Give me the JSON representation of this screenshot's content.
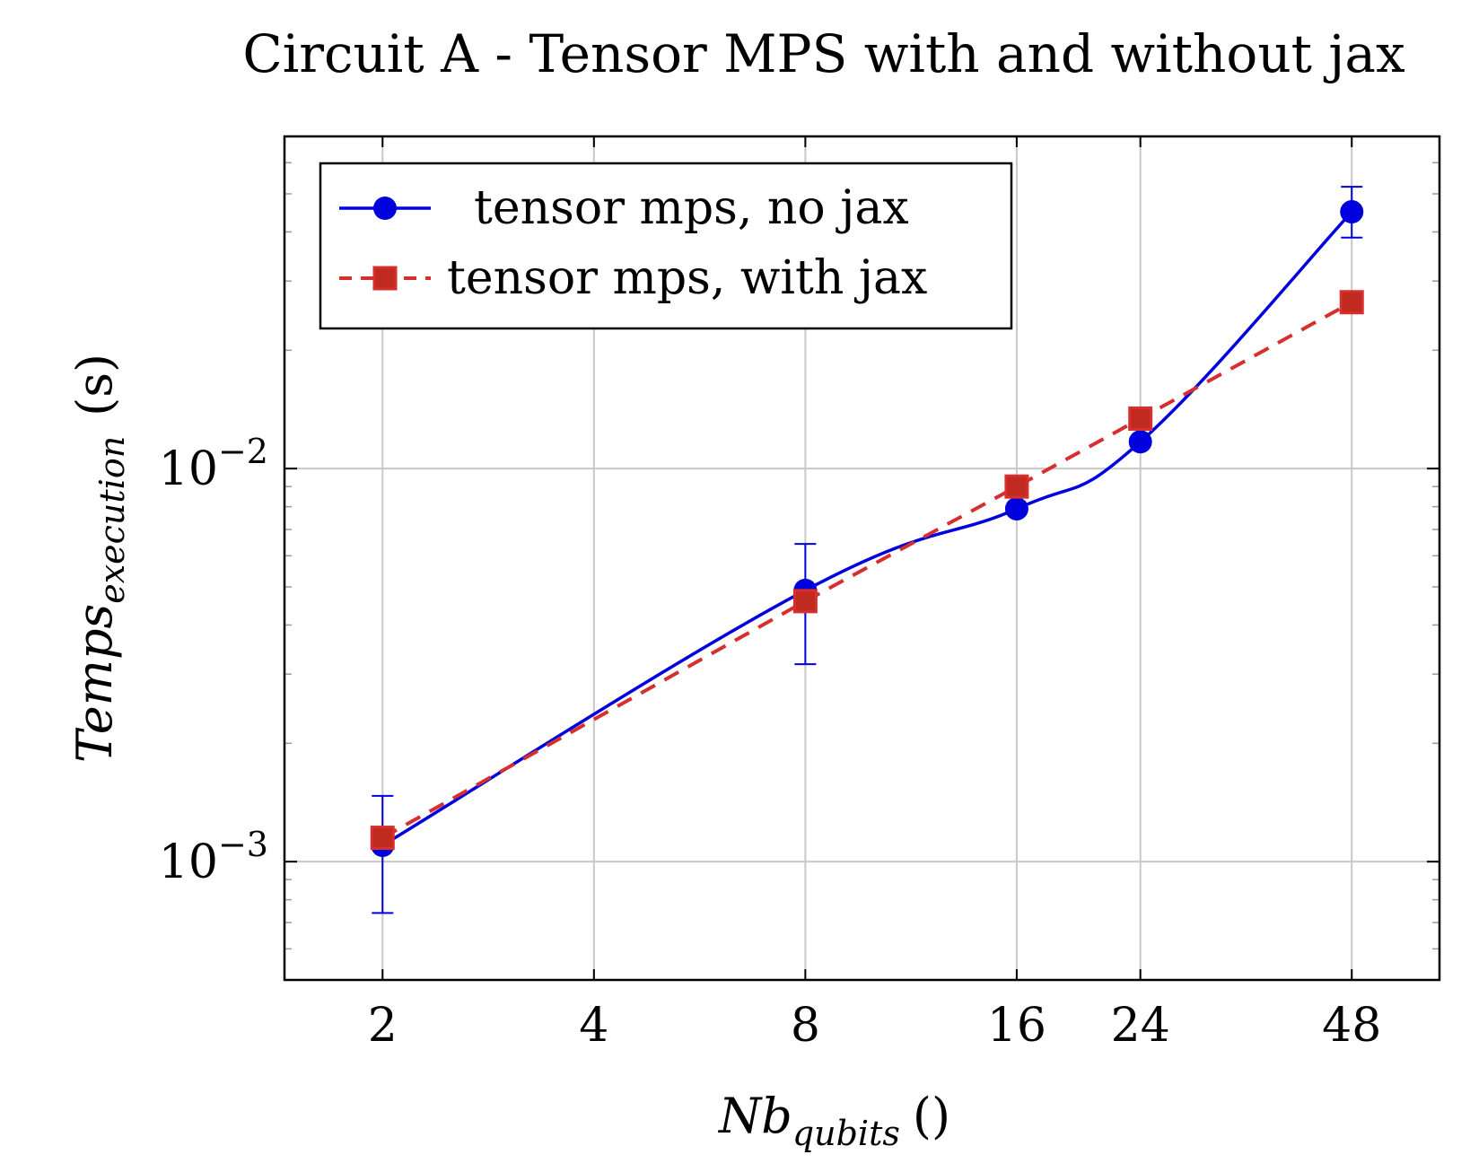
{
  "chart_data": {
    "type": "line",
    "title": "Circuit A - Tensor MPS with and without jax",
    "xlabel": {
      "main": "Nb",
      "sub": "qubits",
      "unit": "()"
    },
    "ylabel": {
      "main": "Temps",
      "sub": "execution",
      "unit": "(s)"
    },
    "x_scale": "log2",
    "y_scale": "log10",
    "x_ticks": [
      2,
      4,
      8,
      16,
      24,
      48
    ],
    "x_tick_labels": [
      "2",
      "4",
      "8",
      "16",
      "24",
      "48"
    ],
    "y_ticks": [
      0.001,
      0.01
    ],
    "y_tick_labels": [
      {
        "base": "10",
        "exp": "−3"
      },
      {
        "base": "10",
        "exp": "−2"
      }
    ],
    "xlim": [
      1.45,
      64
    ],
    "ylim": [
      0.0005,
      0.07
    ],
    "grid": true,
    "legend_position": "top-left",
    "series": [
      {
        "name": "tensor mps, no jax",
        "color": "#0000dd",
        "line_style": "solid",
        "marker": "circle",
        "smooth": true,
        "x": [
          2,
          8,
          16,
          24,
          48
        ],
        "y": [
          0.0011,
          0.0049,
          0.0079,
          0.0117,
          0.045
        ],
        "error_low": [
          0.00074,
          0.00318,
          null,
          null,
          0.0387
        ],
        "error_high": [
          0.00147,
          0.00643,
          null,
          null,
          0.0521
        ]
      },
      {
        "name": "tensor mps, with jax",
        "color": "#d62f2f",
        "line_style": "dashed",
        "marker": "square",
        "smooth": false,
        "x": [
          2,
          8,
          16,
          24,
          48
        ],
        "y": [
          0.00115,
          0.0046,
          0.009,
          0.0134,
          0.0265
        ]
      }
    ]
  }
}
